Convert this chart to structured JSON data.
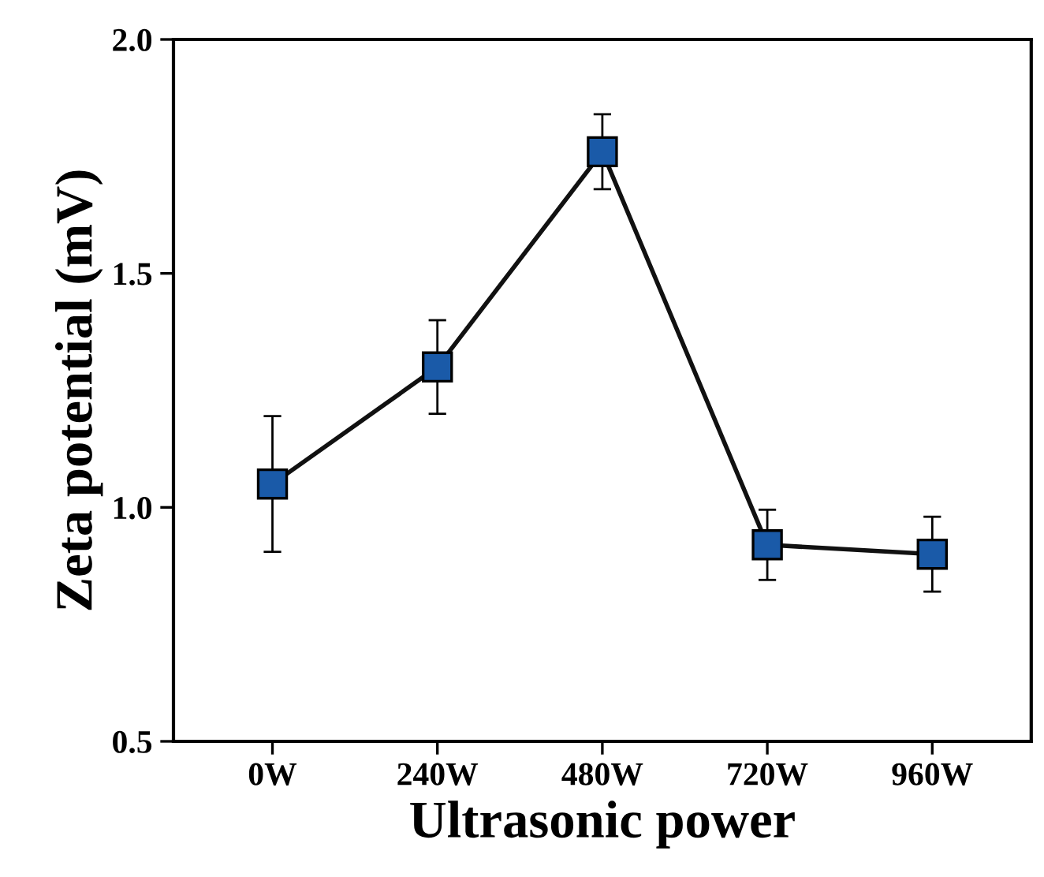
{
  "chart_data": {
    "type": "line",
    "xlabel": "Ultrasonic power",
    "ylabel": "Zeta potential (mV)",
    "categories": [
      "0W",
      "240W",
      "480W",
      "720W",
      "960W"
    ],
    "series": [
      {
        "color": "#1a5aa8",
        "values": [
          1.05,
          1.3,
          1.76,
          0.92,
          0.9
        ],
        "errors": [
          0.145,
          0.1,
          0.08,
          0.075,
          0.08
        ]
      }
    ],
    "ylim": [
      0.5,
      2.0
    ],
    "yticks": [
      {
        "value": 0.5,
        "label": "0.5"
      },
      {
        "value": 1.0,
        "label": "1.0"
      },
      {
        "value": 1.5,
        "label": "1.5"
      },
      {
        "value": 2.0,
        "label": "2.0"
      }
    ],
    "marker": "square",
    "line_style": "solid"
  }
}
